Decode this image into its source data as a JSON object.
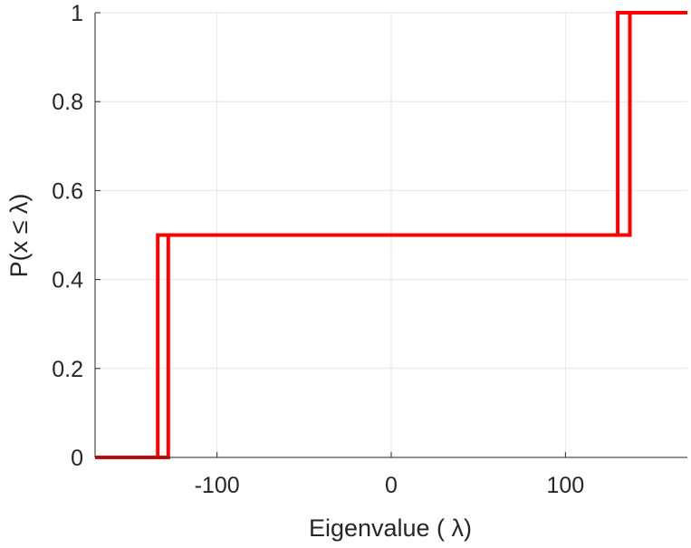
{
  "chart_data": {
    "type": "line",
    "title": "",
    "xlabel": "Eigenvalue (   λ)",
    "ylabel": "P(x ≤ λ)",
    "xlim": [
      -170,
      170
    ],
    "ylim": [
      0,
      1
    ],
    "x_ticks": [
      -100,
      0,
      100
    ],
    "x_tick_labels": [
      "-100",
      "0",
      "100"
    ],
    "y_ticks": [
      0,
      0.2,
      0.4,
      0.6,
      0.8,
      1
    ],
    "y_tick_labels": [
      "0",
      "0.2",
      "0.4",
      "0.6",
      "0.8",
      "1"
    ],
    "grid": true,
    "legend": "none",
    "series": [
      {
        "color": "#ff0000",
        "x": [
          -170,
          -134,
          -134,
          130,
          130,
          170
        ],
        "y": [
          0,
          0,
          0.5,
          0.5,
          1,
          1
        ]
      },
      {
        "color": "#ff0000",
        "x": [
          -170,
          -128,
          -128,
          137,
          137,
          170
        ],
        "y": [
          0,
          0,
          0.5,
          0.5,
          1,
          1
        ]
      }
    ]
  }
}
